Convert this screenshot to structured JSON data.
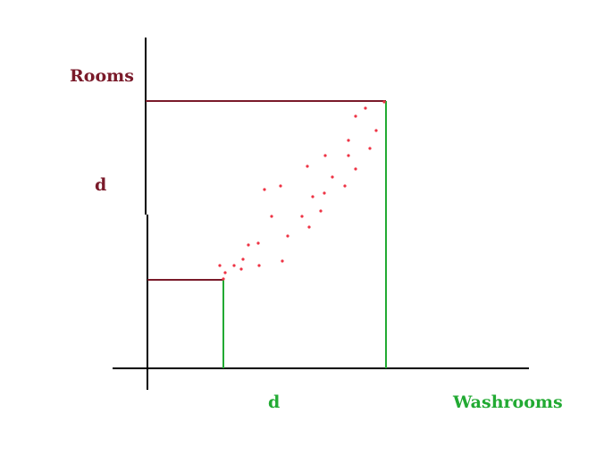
{
  "labels": {
    "y_axis": "Rooms",
    "y_d": "d",
    "x_d": "d",
    "x_axis": "Washrooms"
  },
  "colors": {
    "axis": "#000000",
    "maroon": "#7a1a2a",
    "green": "#22aa33",
    "dot": "#ee3344"
  }
}
